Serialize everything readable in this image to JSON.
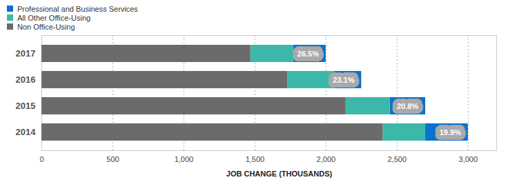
{
  "chart_data": {
    "type": "bar",
    "orientation": "horizontal",
    "stacked": true,
    "legend": "top-left",
    "xlabel": "JOB CHANGE (THOUSANDS)",
    "categories": [
      "2017",
      "2016",
      "2015",
      "2014"
    ],
    "series": [
      {
        "name": "Professional and Business Services",
        "color": "#0a72cc",
        "values": [
          230,
          190,
          250,
          300
        ]
      },
      {
        "name": "All Other Office-Using",
        "color": "#3bb8a9",
        "values": [
          300,
          330,
          310,
          300
        ]
      },
      {
        "name": "Non Office-Using",
        "color": "#6b6b6b",
        "values": [
          1470,
          1730,
          2140,
          2400
        ]
      }
    ],
    "annotations": [
      {
        "category": "2017",
        "label": "26.5%"
      },
      {
        "category": "2016",
        "label": "23.1%"
      },
      {
        "category": "2015",
        "label": "20.8%"
      },
      {
        "category": "2014",
        "label": "19.9%"
      }
    ],
    "xlim": [
      0,
      3200
    ],
    "xticks": [
      0,
      500,
      {
        "value": 1000,
        "label": "1,000"
      },
      {
        "value": 1500,
        "label": "1,500"
      },
      {
        "value": 2000,
        "label": "2,000"
      },
      {
        "value": 2500,
        "label": "2,500"
      },
      {
        "value": 3000,
        "label": "3,000"
      }
    ],
    "grid": true
  }
}
